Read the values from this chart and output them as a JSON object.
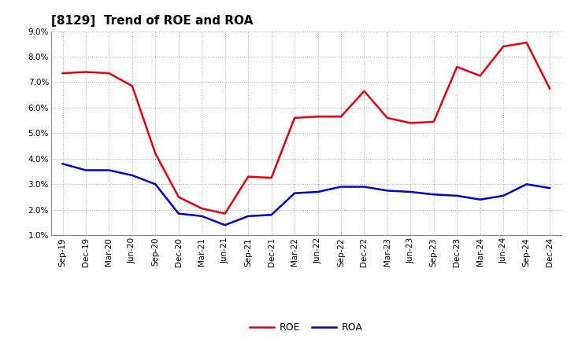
{
  "title": "[8129]  Trend of ROE and ROA",
  "xlabels": [
    "Sep-19",
    "Dec-19",
    "Mar-20",
    "Jun-20",
    "Sep-20",
    "Dec-20",
    "Mar-21",
    "Jun-21",
    "Sep-21",
    "Dec-21",
    "Mar-22",
    "Jun-22",
    "Sep-22",
    "Dec-22",
    "Mar-23",
    "Jun-23",
    "Sep-23",
    "Dec-23",
    "Mar-24",
    "Jun-24",
    "Sep-24",
    "Dec-24"
  ],
  "roe": [
    7.35,
    7.4,
    7.35,
    6.85,
    4.2,
    2.5,
    2.05,
    1.85,
    3.3,
    3.25,
    5.6,
    5.65,
    5.65,
    6.65,
    5.6,
    5.4,
    5.45,
    7.6,
    7.25,
    8.4,
    8.55,
    6.75
  ],
  "roa": [
    3.8,
    3.55,
    3.55,
    3.35,
    3.0,
    1.85,
    1.75,
    1.4,
    1.75,
    1.8,
    2.65,
    2.7,
    2.9,
    2.9,
    2.75,
    2.7,
    2.6,
    2.55,
    2.4,
    2.55,
    3.0,
    2.85
  ],
  "roe_color": "#e8000d",
  "roa_color": "#0000cc",
  "ylim": [
    1.0,
    9.0
  ],
  "yticks": [
    1.0,
    2.0,
    3.0,
    4.0,
    5.0,
    6.0,
    7.0,
    8.0,
    9.0
  ],
  "background_color": "#ffffff",
  "plot_bg_color": "#ffffff",
  "grid_color": "#aaaaaa",
  "title_fontsize": 11,
  "legend_fontsize": 9,
  "tick_fontsize": 7.5,
  "line_width": 1.8
}
